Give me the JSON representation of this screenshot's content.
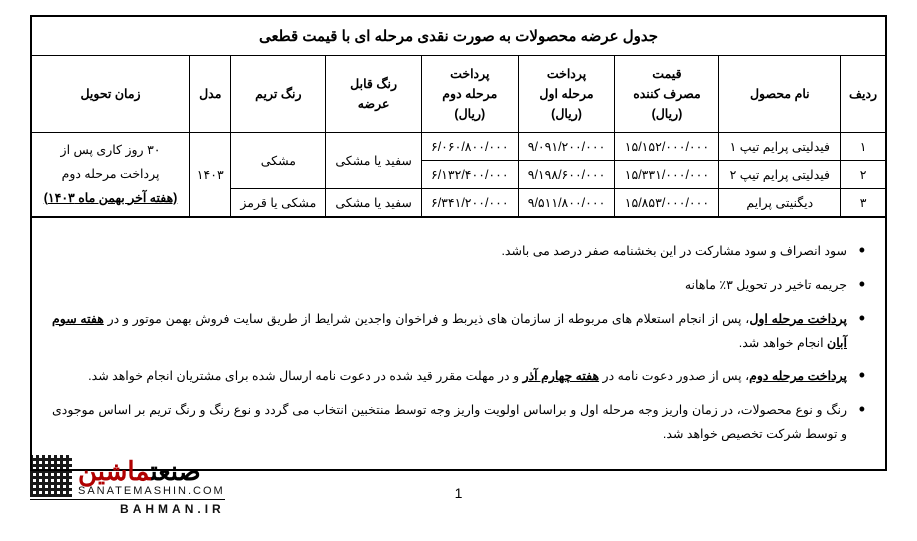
{
  "table": {
    "title": "جدول عرضه محصولات به صورت نقدی مرحله ای با قیمت قطعی",
    "headers": {
      "row_no": "ردیف",
      "product": "نام محصول",
      "price": "قیمت\nمصرف کننده\n(ریال)",
      "pay1": "پرداخت\nمرحله اول\n(ریال)",
      "pay2": "پرداخت\nمرحله دوم\n(ریال)",
      "color_avail": "رنگ قابل\nعرضه",
      "trim_color": "رنگ تریم",
      "model": "مدل",
      "delivery": "زمان تحویل"
    },
    "rows": [
      {
        "no": "۱",
        "name": "فیدلیتی پرایم تیپ ۱",
        "price": "۱۵/۱۵۲/۰۰۰/۰۰۰",
        "pay1": "۹/۰۹۱/۲۰۰/۰۰۰",
        "pay2": "۶/۰۶۰/۸۰۰/۰۰۰",
        "color": "سفید یا مشکی",
        "trim": "مشکی"
      },
      {
        "no": "۲",
        "name": "فیدلیتی پرایم تیپ ۲",
        "price": "۱۵/۳۳۱/۰۰۰/۰۰۰",
        "pay1": "۹/۱۹۸/۶۰۰/۰۰۰",
        "pay2": "۶/۱۳۲/۴۰۰/۰۰۰"
      },
      {
        "no": "۳",
        "name": "دیگنیتی پرایم",
        "price": "۱۵/۸۵۳/۰۰۰/۰۰۰",
        "pay1": "۹/۵۱۱/۸۰۰/۰۰۰",
        "pay2": "۶/۳۴۱/۲۰۰/۰۰۰",
        "color": "سفید یا مشکی",
        "trim": "مشکی یا قرمز"
      }
    ],
    "model_year": "۱۴۰۳",
    "delivery_text": {
      "line1": "۳۰ روز کاری پس از",
      "line2": "پرداخت مرحله دوم",
      "line3": "(هفته آخر بهمن ماه ۱۴۰۳)"
    }
  },
  "notes": {
    "n1": "سود  انصراف و سود مشارکت در این بخشنامه صفر درصد می باشد.",
    "n2": "جریمه تاخیر در تحویل ۳٪ ماهانه",
    "n3_a": "پرداخت مرحله اول",
    "n3_b": "، پس از انجام استعلام های مربوطه از سازمان های ذیربط و فراخوان واجدین شرایط از طریق سایت فروش بهمن موتور و در ",
    "n3_c": "هفته سوم آبان",
    "n3_d": " انجام خواهد شد.",
    "n4_a": "پرداخت مرحله دوم",
    "n4_b": "، پس از صدور دعوت نامه در ",
    "n4_c": "هفته چهارم آذر",
    "n4_d": " و در مهلت مقرر قید شده در دعوت نامه ارسال شده برای مشتریان انجام خواهد شد.",
    "n5": "رنگ و نوع محصولات، در زمان واریز وجه مرحله اول و براساس اولویت واریز وجه توسط منتخبین انتخاب می گردد و نوع رنگ و رنگ تریم بر اساس موجودی و توسط شرکت تخصیص خواهد شد."
  },
  "page_number": "1",
  "watermark": {
    "fa_black": "صنعت",
    "fa_red": "ماشین",
    "en": "SANATEMASHIN.COM",
    "bottom": "BAHMAN.IR"
  }
}
